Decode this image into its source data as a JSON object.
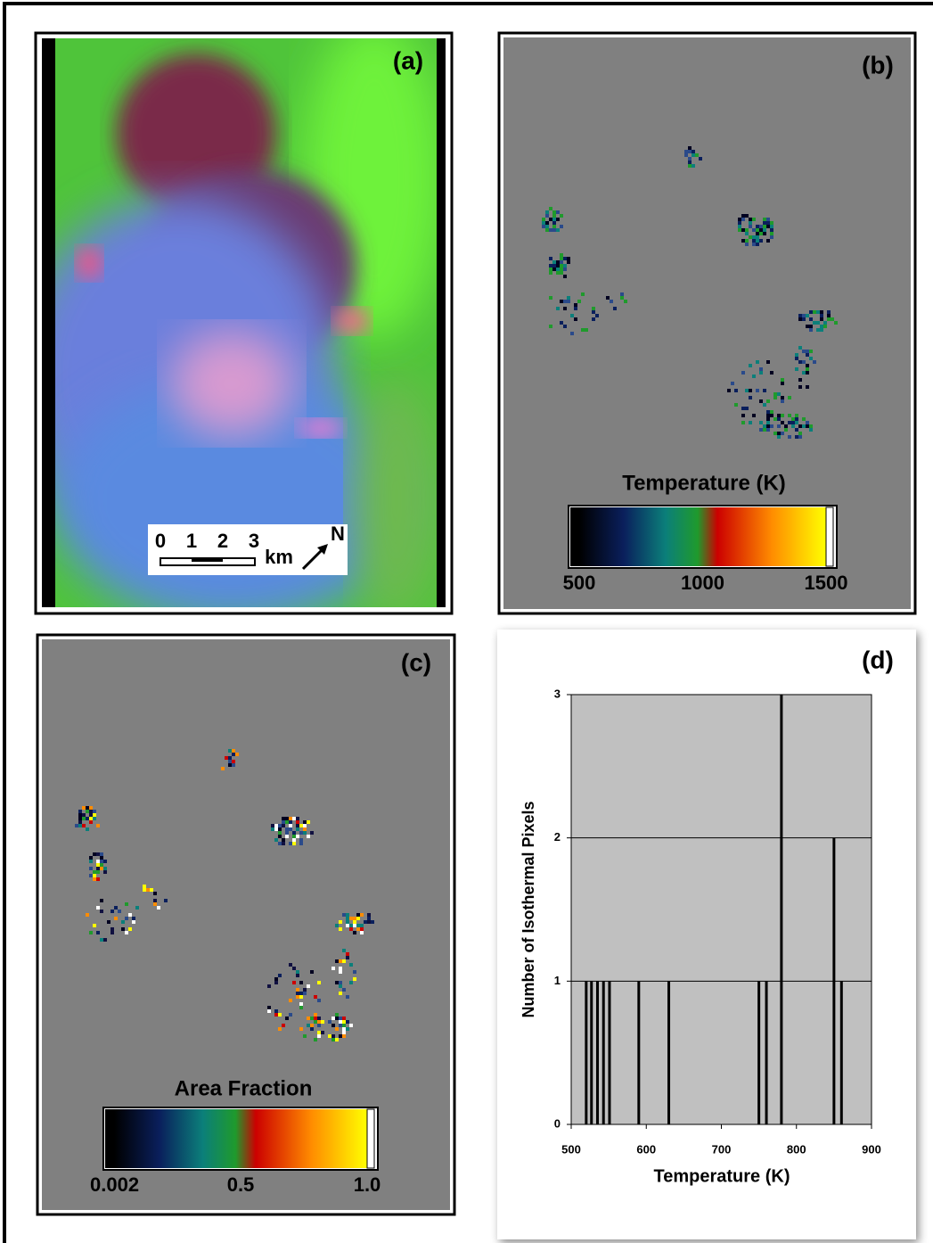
{
  "panels": {
    "a": {
      "label": "(a)",
      "scale_bar": {
        "ticks": [
          0,
          1,
          2,
          3
        ],
        "unit": "km",
        "north": "N"
      }
    },
    "b": {
      "label": "(b)",
      "colorbar": {
        "title": "Temperature (K)",
        "lim": [
          500,
          1500
        ],
        "ticks": [
          500,
          1000,
          1500
        ]
      }
    },
    "c": {
      "label": "(c)",
      "colorbar": {
        "title": "Area Fraction",
        "lim": [
          0,
          1
        ],
        "ticks": [
          {
            "value": 0.002,
            "label": "0.002"
          },
          0.5,
          {
            "value": 1,
            "label": "1.0"
          }
        ]
      }
    }
  },
  "chart_data": {
    "type": "bar",
    "label": "(d)",
    "x_label": "Temperature (K)",
    "y_label": "Number of Isothermal Pixels",
    "x": [
      520,
      527,
      535,
      543,
      551,
      590,
      630,
      750,
      760,
      780,
      850,
      860
    ],
    "values": [
      1,
      1,
      1,
      1,
      1,
      1,
      1,
      1,
      1,
      3,
      2,
      1
    ],
    "color": "#000000",
    "xlim": [
      500,
      900
    ],
    "xticks": [
      500,
      600,
      700,
      800,
      900
    ],
    "ylim": [
      0,
      3
    ],
    "yticks": [
      0,
      1,
      2,
      3
    ],
    "grid": true
  }
}
